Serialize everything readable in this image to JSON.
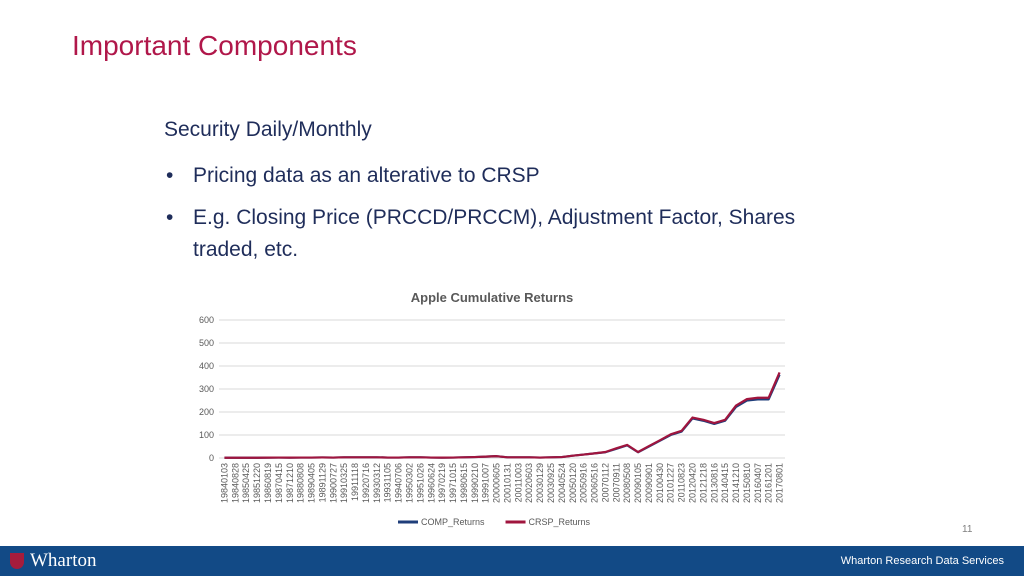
{
  "header": {
    "title": "Important Components"
  },
  "body": {
    "heading": "Security Daily/Monthly",
    "bullets": [
      "Pricing data as an alterative to CRSP",
      "E.g. Closing Price (PRCCD/PRCCM), Adjustment Factor, Shares traded, etc."
    ]
  },
  "chart_data": {
    "type": "line",
    "title": "Apple Cumulative Returns",
    "categories": [
      "19840103",
      "19840828",
      "19850425",
      "19851220",
      "19860819",
      "19870415",
      "19871210",
      "19880808",
      "19890405",
      "19891129",
      "19900727",
      "19910325",
      "19911118",
      "19920716",
      "19930312",
      "19931105",
      "19940706",
      "19950302",
      "19951026",
      "19960624",
      "19970219",
      "19971015",
      "19980615",
      "19990210",
      "19991007",
      "20000605",
      "20010131",
      "20011003",
      "20020603",
      "20030129",
      "20030925",
      "20040524",
      "20050120",
      "20050916",
      "20060516",
      "20070112",
      "20070911",
      "20080508",
      "20090105",
      "20090901",
      "20100430",
      "20101227",
      "20110823",
      "20120420",
      "20121218",
      "20130816",
      "20140415",
      "20141210",
      "20150810",
      "20160407",
      "20161201",
      "20170801"
    ],
    "series": [
      {
        "name": "COMP_Returns",
        "color": "#1f3e7a",
        "values": [
          1,
          1,
          1,
          1,
          1.5,
          2,
          1.5,
          2,
          2,
          2.5,
          2,
          3,
          3,
          3,
          3,
          2,
          2,
          3,
          3,
          2,
          1.5,
          2,
          3,
          4,
          6,
          8,
          3,
          3,
          3,
          2,
          3,
          4,
          10,
          15,
          20,
          25,
          40,
          55,
          25,
          50,
          75,
          100,
          115,
          172,
          162,
          148,
          162,
          222,
          250,
          255,
          255,
          362
        ]
      },
      {
        "name": "CRSP_Returns",
        "color": "#a0153e",
        "values": [
          1,
          1,
          1,
          1,
          1.5,
          2,
          1.5,
          2,
          2,
          2.5,
          2,
          3,
          3,
          3,
          3,
          2,
          2,
          3,
          3,
          2,
          1.5,
          2,
          3,
          4,
          6,
          8,
          3,
          3,
          3,
          2,
          3,
          4,
          10,
          15,
          20,
          26,
          42,
          57,
          26,
          52,
          77,
          103,
          118,
          176,
          166,
          152,
          166,
          228,
          256,
          262,
          262,
          372
        ]
      }
    ],
    "ylim": [
      0,
      600
    ],
    "yticks": [
      0,
      100,
      200,
      300,
      400,
      500,
      600
    ],
    "grid": true,
    "legend": "bottom"
  },
  "footer": {
    "page_number": "11",
    "logo": "Wharton",
    "brand": "Wharton Research Data Services"
  }
}
